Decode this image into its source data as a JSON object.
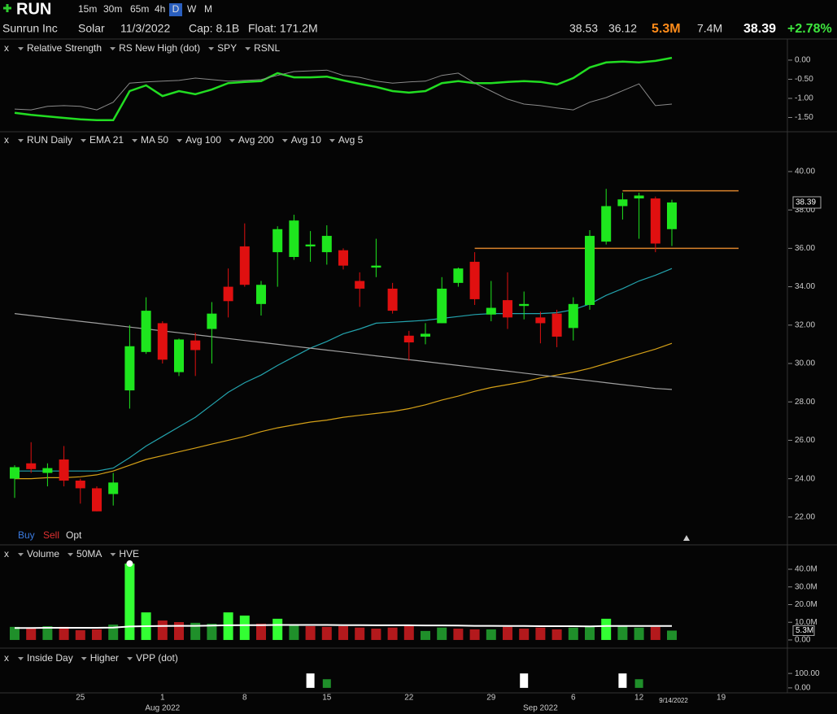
{
  "header": {
    "symbol": "RUN",
    "timeframes": [
      "15m",
      "30m",
      "65m",
      "4h",
      "D",
      "W",
      "M"
    ],
    "company": "Sunrun Inc",
    "sector": "Solar",
    "date": "11/3/2022",
    "cap": "Cap: 8.1B",
    "float": "Float: 171.2M",
    "high": "38.53",
    "low": "36.12",
    "volume": "5.3M",
    "avg_volume": "7.4M",
    "last": "38.39",
    "change": "+2.78%",
    "panel_close": "x",
    "trade": [
      "Buy",
      "Sell",
      "Opt"
    ]
  },
  "cursor_date": "9/14/2022",
  "chart_data": [
    {
      "type": "line",
      "ylim": [
        -1.83,
        0.19
      ],
      "yticks": [
        {
          "value": 0,
          "label": "0.00"
        },
        {
          "value": -0.5,
          "label": "-0.50"
        },
        {
          "value": -1,
          "label": "-1.00"
        },
        {
          "value": -1.5,
          "label": "-1.50"
        }
      ],
      "series": [
        {
          "name": "Relative Strength",
          "color": "#22dd22",
          "values": [
            -1.38,
            -1.43,
            -1.47,
            -1.51,
            -1.55,
            -1.57,
            -1.57,
            -0.81,
            -0.66,
            -0.94,
            -0.81,
            -0.89,
            -0.77,
            -0.6,
            -0.57,
            -0.55,
            -0.34,
            -0.45,
            -0.45,
            -0.43,
            -0.53,
            -0.62,
            -0.7,
            -0.81,
            -0.85,
            -0.81,
            -0.6,
            -0.55,
            -0.6,
            -0.6,
            -0.57,
            -0.55,
            -0.57,
            -0.64,
            -0.47,
            -0.19,
            -0.06,
            -0.04,
            -0.06,
            -0.02,
            0.06,
            null,
            null,
            null,
            null
          ]
        },
        {
          "name": "SPY",
          "color": "#8a8a8a",
          "values": [
            -1.28,
            -1.3,
            -1.21,
            -1.19,
            -1.21,
            -1.3,
            -1.1,
            -0.6,
            -0.57,
            -0.55,
            -0.53,
            -0.47,
            -0.51,
            -0.55,
            -0.53,
            -0.51,
            -0.4,
            -0.3,
            -0.28,
            -0.26,
            -0.4,
            -0.45,
            -0.55,
            -0.6,
            -0.57,
            -0.55,
            -0.4,
            -0.34,
            -0.6,
            -0.81,
            -1.02,
            -1.15,
            -1.19,
            -1.25,
            -1.3,
            -1.1,
            -0.98,
            -0.8,
            -0.62,
            -1.19,
            -1.15,
            null,
            null,
            null,
            null
          ]
        }
      ],
      "legend_extra": [
        {
          "name": "RS New High (dot)",
          "color": "#55c8c8"
        },
        {
          "name": "RSNL",
          "color": "#dd3333"
        }
      ]
    },
    {
      "type": "candlestick",
      "name": "RUN Daily",
      "up_color": "#1ee61e",
      "down_color": "#e01010",
      "categories": [
        null,
        null,
        null,
        null,
        "25",
        null,
        null,
        null,
        null,
        "1",
        null,
        null,
        null,
        null,
        "8",
        null,
        null,
        null,
        null,
        "15",
        null,
        null,
        null,
        null,
        "22",
        null,
        null,
        null,
        null,
        "29",
        null,
        null,
        null,
        null,
        "6",
        null,
        null,
        null,
        "12",
        null,
        null,
        null,
        null,
        "19",
        null
      ],
      "x_secondary": [
        null,
        null,
        null,
        null,
        null,
        null,
        null,
        null,
        null,
        "Aug 2022",
        null,
        null,
        null,
        null,
        null,
        null,
        null,
        null,
        null,
        null,
        null,
        null,
        null,
        null,
        null,
        null,
        null,
        null,
        null,
        null,
        null,
        null,
        "Sep 2022",
        null,
        null,
        null,
        null,
        null,
        null,
        null,
        null,
        null,
        null,
        null,
        null
      ],
      "open": [
        24.0,
        24.8,
        24.3,
        25.0,
        23.9,
        23.5,
        23.2,
        28.6,
        30.6,
        32.1,
        29.55,
        31.2,
        31.8,
        34.0,
        36.1,
        33.1,
        35.8,
        35.55,
        36.1,
        35.8,
        35.9,
        34.3,
        35.0,
        33.9,
        31.45,
        31.4,
        32.1,
        34.2,
        35.3,
        32.55,
        33.3,
        33.0,
        32.4,
        32.6,
        31.85,
        33.05,
        36.35,
        38.2,
        38.6,
        38.6,
        37.0,
        null,
        null,
        null,
        null
      ],
      "high": [
        24.7,
        25.9,
        24.8,
        25.7,
        24.0,
        23.6,
        24.3,
        32.0,
        33.45,
        32.2,
        31.3,
        31.6,
        33.2,
        34.95,
        37.3,
        34.3,
        37.15,
        37.75,
        36.9,
        37.2,
        36.0,
        34.75,
        36.5,
        34.2,
        31.7,
        32.1,
        34.5,
        35.0,
        35.8,
        34.3,
        34.75,
        33.75,
        32.7,
        32.8,
        33.45,
        36.95,
        39.1,
        38.9,
        38.9,
        38.7,
        38.53,
        null,
        null,
        null,
        null
      ],
      "low": [
        23.0,
        24.3,
        23.6,
        23.6,
        22.7,
        22.3,
        22.6,
        27.65,
        30.5,
        30.0,
        29.35,
        29.35,
        30.0,
        32.4,
        34.0,
        32.5,
        34.0,
        35.4,
        35.3,
        35.15,
        34.9,
        32.95,
        34.5,
        32.6,
        30.15,
        31.0,
        32.1,
        34.0,
        33.05,
        32.2,
        31.8,
        32.3,
        31.05,
        30.85,
        31.2,
        32.8,
        36.2,
        37.5,
        36.5,
        35.8,
        36.12,
        null,
        null,
        null,
        null
      ],
      "close": [
        24.6,
        24.5,
        24.55,
        23.9,
        23.5,
        22.3,
        23.8,
        30.9,
        32.75,
        30.2,
        31.25,
        30.7,
        32.6,
        33.25,
        34.1,
        34.1,
        37.0,
        37.45,
        36.2,
        36.65,
        35.1,
        33.9,
        35.1,
        32.75,
        31.1,
        31.55,
        33.9,
        34.95,
        33.35,
        32.9,
        32.4,
        33.1,
        32.1,
        31.4,
        33.1,
        36.65,
        38.2,
        38.55,
        38.75,
        36.25,
        38.39,
        null,
        null,
        null,
        null
      ],
      "ylim": [
        21.4,
        41.1
      ],
      "yticks": [
        {
          "value": 22,
          "label": "22.00"
        },
        {
          "value": 24,
          "label": "24.00"
        },
        {
          "value": 26,
          "label": "26.00"
        },
        {
          "value": 28,
          "label": "28.00"
        },
        {
          "value": 30,
          "label": "30.00"
        },
        {
          "value": 32,
          "label": "32.00"
        },
        {
          "value": 34,
          "label": "34.00"
        },
        {
          "value": 36,
          "label": "36.00"
        },
        {
          "value": 38,
          "label": "38.00"
        },
        {
          "value": 40,
          "label": "40.00"
        }
      ],
      "series": [
        {
          "name": "EMA 21",
          "color": "#23a3ad",
          "values": [
            24.4,
            24.4,
            24.4,
            24.4,
            24.4,
            24.4,
            24.55,
            25.1,
            25.7,
            26.2,
            26.7,
            27.2,
            27.85,
            28.5,
            29.0,
            29.4,
            29.9,
            30.35,
            30.8,
            31.15,
            31.55,
            31.8,
            32.1,
            32.15,
            32.2,
            32.25,
            32.35,
            32.45,
            32.55,
            32.6,
            32.6,
            32.6,
            32.6,
            32.65,
            32.8,
            33.1,
            33.55,
            33.9,
            34.3,
            34.6,
            34.95,
            null,
            null,
            null,
            null
          ]
        },
        {
          "name": "MA 50",
          "color": "#d4a017",
          "values": [
            24.0,
            24.0,
            24.05,
            24.05,
            24.1,
            24.2,
            24.4,
            24.7,
            25.0,
            25.2,
            25.4,
            25.6,
            25.8,
            26.0,
            26.2,
            26.45,
            26.65,
            26.8,
            26.95,
            27.05,
            27.2,
            27.3,
            27.4,
            27.5,
            27.65,
            27.85,
            28.1,
            28.3,
            28.55,
            28.75,
            28.9,
            29.05,
            29.25,
            29.4,
            29.55,
            29.75,
            30.0,
            30.25,
            30.5,
            30.75,
            31.05,
            null,
            null,
            null,
            null
          ]
        },
        {
          "name": "Avg 200",
          "color": "#a0a0a0",
          "values": [
            32.6,
            32.5,
            32.4,
            32.3,
            32.2,
            32.1,
            32.0,
            31.9,
            31.8,
            31.7,
            31.6,
            31.5,
            31.4,
            31.3,
            31.2,
            31.1,
            31.0,
            30.9,
            30.8,
            30.7,
            30.6,
            30.5,
            30.4,
            30.3,
            30.2,
            30.1,
            30.0,
            29.9,
            29.8,
            29.7,
            29.6,
            29.5,
            29.4,
            29.3,
            29.2,
            29.1,
            29.0,
            28.9,
            28.8,
            28.7,
            28.65,
            null,
            null,
            null,
            null
          ]
        }
      ],
      "legend_extra": [
        {
          "name": "Avg 100",
          "color": "#e07b1f"
        },
        {
          "name": "Avg 10",
          "color": "#e07b1f"
        },
        {
          "name": "Avg 5",
          "color": "#2a8a9a"
        }
      ],
      "hlines": [
        {
          "value": 39.0,
          "color": "#d9822b"
        },
        {
          "value": 36.0,
          "color": "#d9822b"
        }
      ]
    },
    {
      "type": "bar",
      "ylim": [
        -3.7,
        44.6
      ],
      "yticks": [
        {
          "value": 0,
          "label": "0.00"
        },
        {
          "value": 10,
          "label": "10.0M"
        },
        {
          "value": 20,
          "label": "20.0M"
        },
        {
          "value": 30,
          "label": "30.0M"
        },
        {
          "value": 40,
          "label": "40.0M"
        }
      ],
      "name": "Volume",
      "color": "#22cc22",
      "values": [
        7.4,
        7.0,
        7.8,
        7.4,
        5.5,
        6.0,
        8.7,
        43.2,
        15.6,
        11.0,
        10.1,
        9.7,
        9.2,
        15.6,
        13.8,
        9.2,
        12.0,
        8.7,
        7.8,
        7.4,
        7.8,
        7.0,
        6.4,
        7.0,
        8.7,
        5.1,
        7.0,
        6.4,
        6.0,
        6.0,
        7.4,
        6.4,
        7.0,
        6.0,
        7.0,
        7.4,
        12.0,
        7.8,
        7.0,
        7.4,
        5.3,
        null,
        null,
        null,
        null
      ],
      "value_labels": [
        null,
        null,
        null,
        null,
        null,
        null,
        null,
        null,
        null,
        null,
        null,
        null,
        null,
        null,
        null,
        null,
        null,
        null,
        null,
        null,
        null,
        null,
        null,
        null,
        null,
        null,
        null,
        null,
        null,
        null,
        null,
        null,
        null,
        null,
        null,
        null,
        null,
        null,
        null,
        null,
        "5.3M",
        null,
        null,
        null,
        null
      ],
      "colors": [
        "#1f8f2a",
        "#b3191c",
        "#1f8f2a",
        "#b3191c",
        "#b3191c",
        "#b3191c",
        "#1f8f2a",
        "#33ff33",
        "#33ff33",
        "#b3191c",
        "#b3191c",
        "#1f8f2a",
        "#1f8f2a",
        "#33ff33",
        "#33ff33",
        "#b3191c",
        "#33ff33",
        "#1f8f2a",
        "#b3191c",
        "#b3191c",
        "#b3191c",
        "#b3191c",
        "#b3191c",
        "#b3191c",
        "#b3191c",
        "#1f8f2a",
        "#1f8f2a",
        "#b3191c",
        "#b3191c",
        "#1f8f2a",
        "#b3191c",
        "#b3191c",
        "#b3191c",
        "#b3191c",
        "#1f8f2a",
        "#1f8f2a",
        "#33ff33",
        "#1f8f2a",
        "#1f8f2a",
        "#b3191c",
        "#1f8f2a",
        null,
        null,
        null,
        null
      ],
      "series": [
        {
          "name": "50MA",
          "color": "#ffffff",
          "values": [
            6.8,
            6.8,
            6.9,
            6.9,
            6.9,
            6.9,
            7.0,
            7.6,
            7.8,
            7.9,
            8.0,
            8.0,
            8.1,
            8.3,
            8.4,
            8.4,
            8.5,
            8.5,
            8.5,
            8.5,
            8.4,
            8.4,
            8.3,
            8.3,
            8.3,
            8.2,
            8.2,
            8.1,
            8.0,
            8.0,
            7.9,
            7.9,
            7.8,
            7.8,
            7.8,
            7.7,
            7.9,
            7.9,
            7.9,
            7.9,
            7.9,
            null,
            null,
            null,
            null
          ]
        }
      ],
      "legend_extra": [
        {
          "name": "HVE",
          "color": "#dddddd"
        }
      ]
    },
    {
      "type": "event",
      "ylim": [
        -12,
        112
      ],
      "yticks": [
        {
          "value": 100,
          "label": "100.00"
        },
        {
          "value": 0,
          "label": "0.00"
        }
      ],
      "series": [
        {
          "name": "Inside Day",
          "color": "#ffffff",
          "values": [
            null,
            null,
            null,
            null,
            null,
            null,
            null,
            null,
            null,
            null,
            null,
            null,
            null,
            null,
            null,
            null,
            null,
            null,
            100,
            null,
            null,
            null,
            null,
            null,
            null,
            null,
            null,
            null,
            null,
            null,
            null,
            100,
            null,
            null,
            null,
            null,
            null,
            100,
            null,
            null,
            null,
            null,
            null,
            null,
            null
          ]
        },
        {
          "name": "Higher",
          "color": "#1f8f2a",
          "values": [
            null,
            null,
            null,
            null,
            null,
            null,
            null,
            null,
            null,
            null,
            null,
            null,
            null,
            null,
            null,
            null,
            null,
            null,
            null,
            60,
            null,
            null,
            null,
            null,
            null,
            null,
            null,
            null,
            null,
            null,
            null,
            null,
            null,
            null,
            null,
            null,
            null,
            null,
            60,
            null,
            null,
            null,
            null,
            null,
            null
          ]
        }
      ],
      "legend_extra": [
        {
          "name": "VPP (dot)",
          "color": "#dddddd"
        }
      ]
    }
  ]
}
